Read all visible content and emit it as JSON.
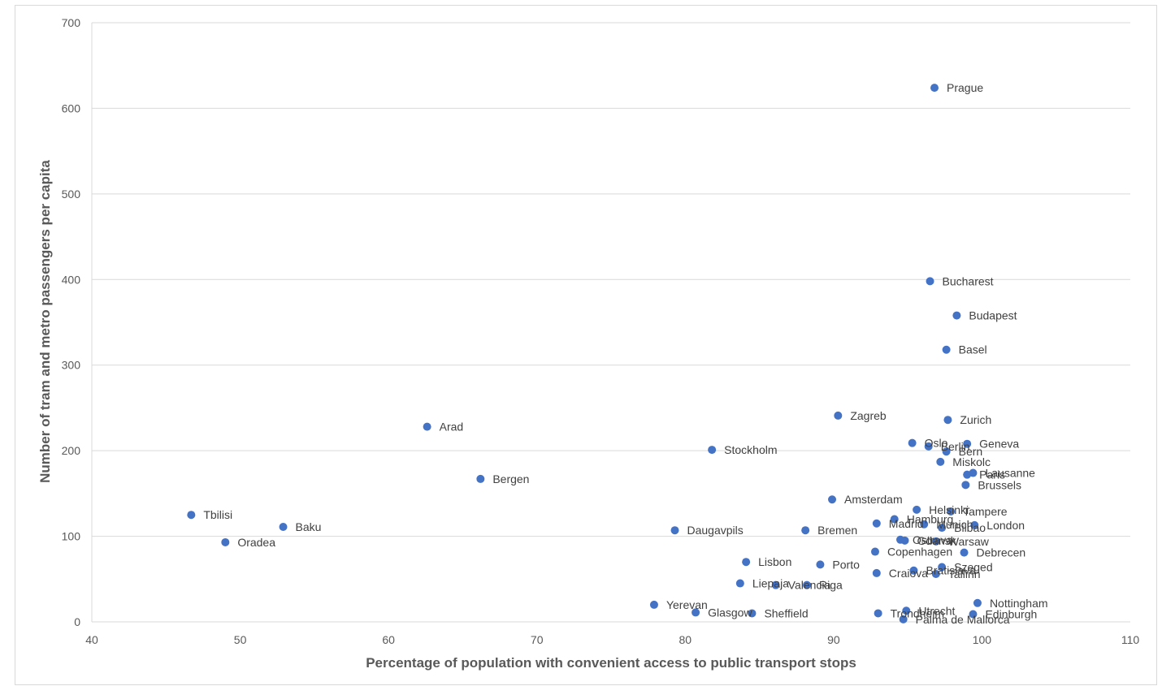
{
  "chart_data": {
    "type": "scatter",
    "title": "",
    "xlabel": "Percentage of population with convenient access to public transport stops",
    "ylabel": "Number of tram and metro passengers per capita",
    "xlim": [
      40,
      110
    ],
    "ylim": [
      0,
      700
    ],
    "x_ticks": [
      40,
      50,
      60,
      70,
      80,
      90,
      100,
      110
    ],
    "y_ticks": [
      0,
      100,
      200,
      300,
      400,
      500,
      600,
      700
    ],
    "grid": "horizontal",
    "legend": "none",
    "marker_color": "#4472c4",
    "points": [
      {
        "label": "Prague",
        "x": 96.8,
        "y": 624
      },
      {
        "label": "Bucharest",
        "x": 96.5,
        "y": 398
      },
      {
        "label": "Budapest",
        "x": 98.3,
        "y": 358
      },
      {
        "label": "Basel",
        "x": 97.6,
        "y": 318
      },
      {
        "label": "Zagreb",
        "x": 90.3,
        "y": 241
      },
      {
        "label": "Zurich",
        "x": 97.7,
        "y": 236
      },
      {
        "label": "Arad",
        "x": 62.6,
        "y": 228
      },
      {
        "label": "Oslo",
        "x": 95.3,
        "y": 209
      },
      {
        "label": "Geneva",
        "x": 99.0,
        "y": 208
      },
      {
        "label": "Berlin",
        "x": 96.4,
        "y": 205
      },
      {
        "label": "Stockholm",
        "x": 81.8,
        "y": 201
      },
      {
        "label": "Bern",
        "x": 97.6,
        "y": 199
      },
      {
        "label": "Miskolc",
        "x": 97.2,
        "y": 187
      },
      {
        "label": "Lausanne",
        "x": 99.4,
        "y": 174
      },
      {
        "label": "Paris",
        "x": 99.0,
        "y": 172
      },
      {
        "label": "Bergen",
        "x": 66.2,
        "y": 167
      },
      {
        "label": "Brussels",
        "x": 98.9,
        "y": 160
      },
      {
        "label": "Amsterdam",
        "x": 89.9,
        "y": 143
      },
      {
        "label": "Helsinki",
        "x": 95.6,
        "y": 131
      },
      {
        "label": "Tampere",
        "x": 97.9,
        "y": 129
      },
      {
        "label": "Tbilisi",
        "x": 46.7,
        "y": 125
      },
      {
        "label": "Hamburg",
        "x": 94.1,
        "y": 120
      },
      {
        "label": "Madrid",
        "x": 92.9,
        "y": 115
      },
      {
        "label": "Munich",
        "x": 96.1,
        "y": 114
      },
      {
        "label": "London",
        "x": 99.5,
        "y": 113
      },
      {
        "label": "Baku",
        "x": 52.9,
        "y": 111
      },
      {
        "label": "Bilbao",
        "x": 97.3,
        "y": 110
      },
      {
        "label": "Daugavpils",
        "x": 79.3,
        "y": 107
      },
      {
        "label": "Bremen",
        "x": 88.1,
        "y": 107
      },
      {
        "label": "Ostrava",
        "x": 94.5,
        "y": 96
      },
      {
        "label": "Gdansk",
        "x": 94.8,
        "y": 95
      },
      {
        "label": "Warsaw",
        "x": 96.9,
        "y": 94
      },
      {
        "label": "Oradea",
        "x": 49.0,
        "y": 93
      },
      {
        "label": "Copenhagen",
        "x": 92.8,
        "y": 82
      },
      {
        "label": "Debrecen",
        "x": 98.8,
        "y": 81
      },
      {
        "label": "Lisbon",
        "x": 84.1,
        "y": 70
      },
      {
        "label": "Porto",
        "x": 89.1,
        "y": 67
      },
      {
        "label": "Szeged",
        "x": 97.3,
        "y": 64
      },
      {
        "label": "Bratislava",
        "x": 95.4,
        "y": 60
      },
      {
        "label": "Craiova",
        "x": 92.9,
        "y": 57
      },
      {
        "label": "Tallinn",
        "x": 96.9,
        "y": 56
      },
      {
        "label": "Liepaja",
        "x": 83.7,
        "y": 45
      },
      {
        "label": "Valencia",
        "x": 86.1,
        "y": 43
      },
      {
        "label": "Riga",
        "x": 88.2,
        "y": 43
      },
      {
        "label": "Nottingham",
        "x": 99.7,
        "y": 22
      },
      {
        "label": "Yerevan",
        "x": 77.9,
        "y": 20
      },
      {
        "label": "Utrecht",
        "x": 94.9,
        "y": 13
      },
      {
        "label": "Glasgow",
        "x": 80.7,
        "y": 11
      },
      {
        "label": "Sheffield",
        "x": 84.5,
        "y": 10
      },
      {
        "label": "Trondheim",
        "x": 93.0,
        "y": 10
      },
      {
        "label": "Edinburgh",
        "x": 99.4,
        "y": 9
      },
      {
        "label": "Palma de Mallorca",
        "x": 94.7,
        "y": 3
      }
    ]
  }
}
